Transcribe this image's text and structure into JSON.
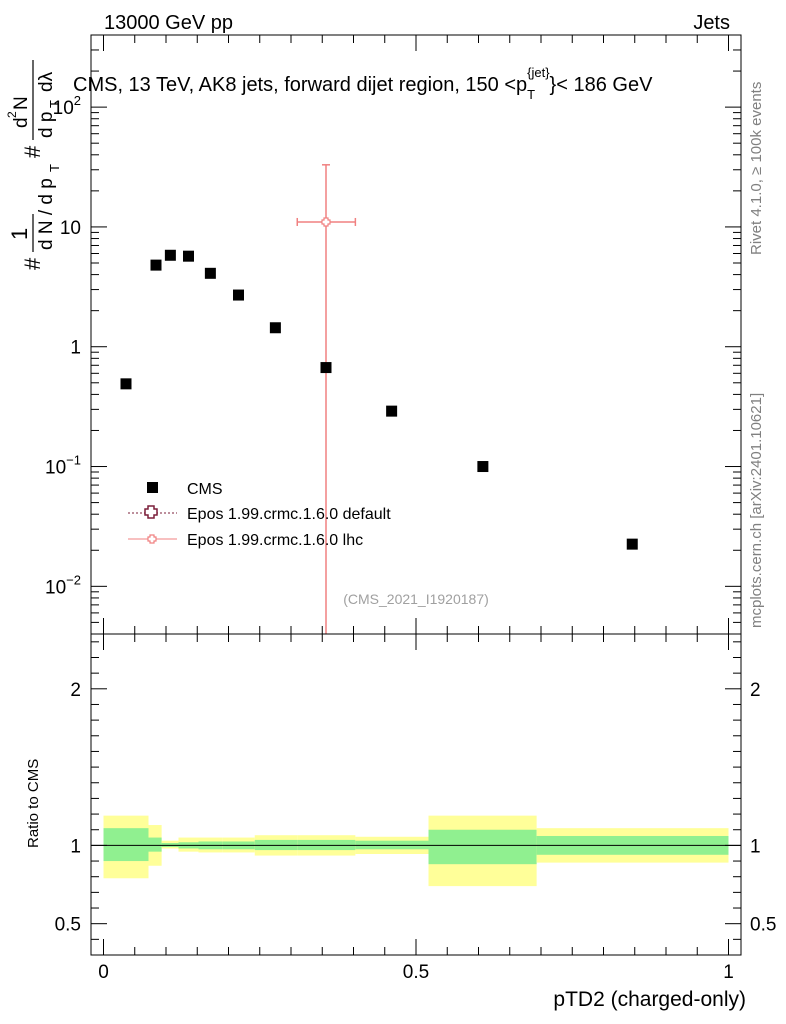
{
  "header": {
    "left": "13000 GeV pp",
    "right": "Jets"
  },
  "side_labels": {
    "rivet": "Rivet 4.1.0, ≥ 100k events",
    "mcplots": "mcplots.cern.ch [arXiv:2401.10621]"
  },
  "watermark": "(CMS_2021_I1920187)",
  "main_ylabel": "1/N dN/dpT d²N/dpT dλ",
  "chart_data": [
    {
      "type": "scatter",
      "title": "CMS, 13 TeV, AK8 jets, forward dijet region, 150 < pT(jet) < 186 GeV",
      "title_parts": {
        "pre": "CMS, 13 TeV, AK8 jets, forward dijet region, 150 <p",
        "sub": "T",
        "sup": "{jet}",
        "post": "}< 186 GeV"
      },
      "yscale": "log",
      "ylim": [
        0.004,
        400
      ],
      "xlim": [
        -0.02,
        1.02
      ],
      "yticks": [
        {
          "v": 0.01,
          "base": "10",
          "exp": "−2"
        },
        {
          "v": 0.1,
          "base": "10",
          "exp": "−1"
        },
        {
          "v": 1,
          "base": "1",
          "exp": ""
        },
        {
          "v": 10,
          "base": "10",
          "exp": ""
        },
        {
          "v": 100,
          "base": "10",
          "exp": "2"
        }
      ],
      "legend": {
        "position": "lower-left",
        "entries": [
          {
            "label": "CMS",
            "marker": "square",
            "color": "#000000"
          },
          {
            "label": "Epos 1.99.crmc.1.6.0 default",
            "marker": "open-cross",
            "color": "#7b1f3a",
            "dash": true
          },
          {
            "label": "Epos 1.99.crmc.1.6.0 lhc",
            "marker": "open-cross-small",
            "color": "#f08080",
            "dash": false
          }
        ]
      },
      "series": [
        {
          "name": "CMS",
          "color": "#000000",
          "points": [
            {
              "x": 0.036,
              "y": 0.49
            },
            {
              "x": 0.084,
              "y": 4.8
            },
            {
              "x": 0.107,
              "y": 5.8
            },
            {
              "x": 0.136,
              "y": 5.7
            },
            {
              "x": 0.171,
              "y": 4.1
            },
            {
              "x": 0.216,
              "y": 2.7
            },
            {
              "x": 0.275,
              "y": 1.44
            },
            {
              "x": 0.356,
              "y": 0.67
            },
            {
              "x": 0.461,
              "y": 0.29
            },
            {
              "x": 0.607,
              "y": 0.1
            },
            {
              "x": 0.846,
              "y": 0.0225
            }
          ]
        },
        {
          "name": "Epos 1.99.crmc.1.6.0 lhc",
          "color": "#f08080",
          "points": [
            {
              "x": 0.356,
              "xerr": [
                0.31,
                0.403
              ],
              "y": 11,
              "yerr": [
                0.001,
                22
              ]
            }
          ]
        }
      ]
    },
    {
      "type": "area",
      "ylabel": "Ratio to CMS",
      "xlabel": "pTD2 (charged-only)",
      "ylim": [
        0.3,
        2.35
      ],
      "xlim": [
        -0.02,
        1.02
      ],
      "yticks": [
        0.5,
        1,
        2
      ],
      "yticks_right": [
        0.5,
        1,
        2
      ],
      "xticks": [
        {
          "v": 0,
          "label": "0"
        },
        {
          "v": 0.5,
          "label": "0.5"
        },
        {
          "v": 1,
          "label": "1"
        }
      ],
      "reference_line": 1,
      "band_colors": {
        "inner": "#90f090",
        "outer": "#ffff99"
      },
      "bands": [
        {
          "x0": 0.0,
          "x1": 0.072,
          "inner": [
            0.9,
            1.11
          ],
          "outer": [
            0.79,
            1.19
          ]
        },
        {
          "x0": 0.072,
          "x1": 0.093,
          "inner": [
            0.96,
            1.05
          ],
          "outer": [
            0.87,
            1.13
          ]
        },
        {
          "x0": 0.093,
          "x1": 0.12,
          "inner": [
            0.99,
            1.015
          ],
          "outer": [
            0.98,
            1.03
          ]
        },
        {
          "x0": 0.12,
          "x1": 0.152,
          "inner": [
            0.98,
            1.02
          ],
          "outer": [
            0.96,
            1.05
          ]
        },
        {
          "x0": 0.152,
          "x1": 0.19,
          "inner": [
            0.975,
            1.025
          ],
          "outer": [
            0.955,
            1.05
          ]
        },
        {
          "x0": 0.19,
          "x1": 0.242,
          "inner": [
            0.975,
            1.025
          ],
          "outer": [
            0.955,
            1.05
          ]
        },
        {
          "x0": 0.242,
          "x1": 0.31,
          "inner": [
            0.97,
            1.035
          ],
          "outer": [
            0.935,
            1.065
          ]
        },
        {
          "x0": 0.31,
          "x1": 0.403,
          "inner": [
            0.97,
            1.035
          ],
          "outer": [
            0.935,
            1.065
          ]
        },
        {
          "x0": 0.403,
          "x1": 0.52,
          "inner": [
            0.975,
            1.03
          ],
          "outer": [
            0.945,
            1.055
          ]
        },
        {
          "x0": 0.52,
          "x1": 0.693,
          "inner": [
            0.88,
            1.1
          ],
          "outer": [
            0.74,
            1.19
          ]
        },
        {
          "x0": 0.693,
          "x1": 1.0,
          "inner": [
            0.94,
            1.06
          ],
          "outer": [
            0.89,
            1.11
          ]
        }
      ]
    }
  ]
}
